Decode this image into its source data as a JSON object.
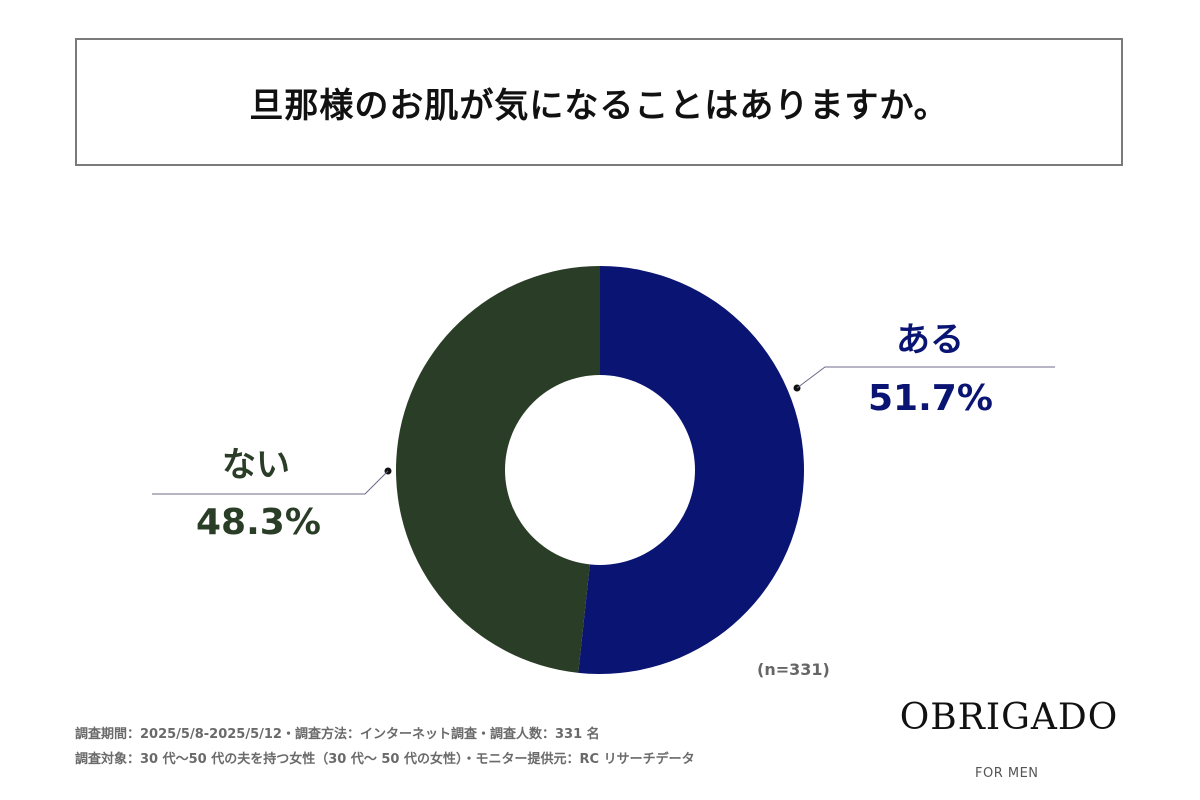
{
  "title": "旦那様のお肌が気になることはありますか。",
  "chart_data": {
    "type": "pie",
    "title": "旦那様のお肌が気になることはありますか。",
    "sample_size_label": "(n=331)",
    "slices": [
      {
        "label": "ある",
        "value": 51.7,
        "value_label": "51.7%",
        "color": "#091473"
      },
      {
        "label": "ない",
        "value": 48.3,
        "value_label": "48.3%",
        "color": "#2a3d26"
      }
    ]
  },
  "footer": {
    "line1": "調査期間：2025/5/8-2025/5/12・調査方法：インターネット調査・調査人数：331 名",
    "line2": "調査対象：30 代〜50 代の夫を持つ女性（30 代〜 50 代の女性）・モニター提供元：RC リサーチデータ"
  },
  "logo": {
    "name": "OBRIGADO",
    "sub": "FOR MEN"
  },
  "colors": {
    "title_border": "#7a7a7a",
    "leader_line": "#6b6b8a"
  }
}
